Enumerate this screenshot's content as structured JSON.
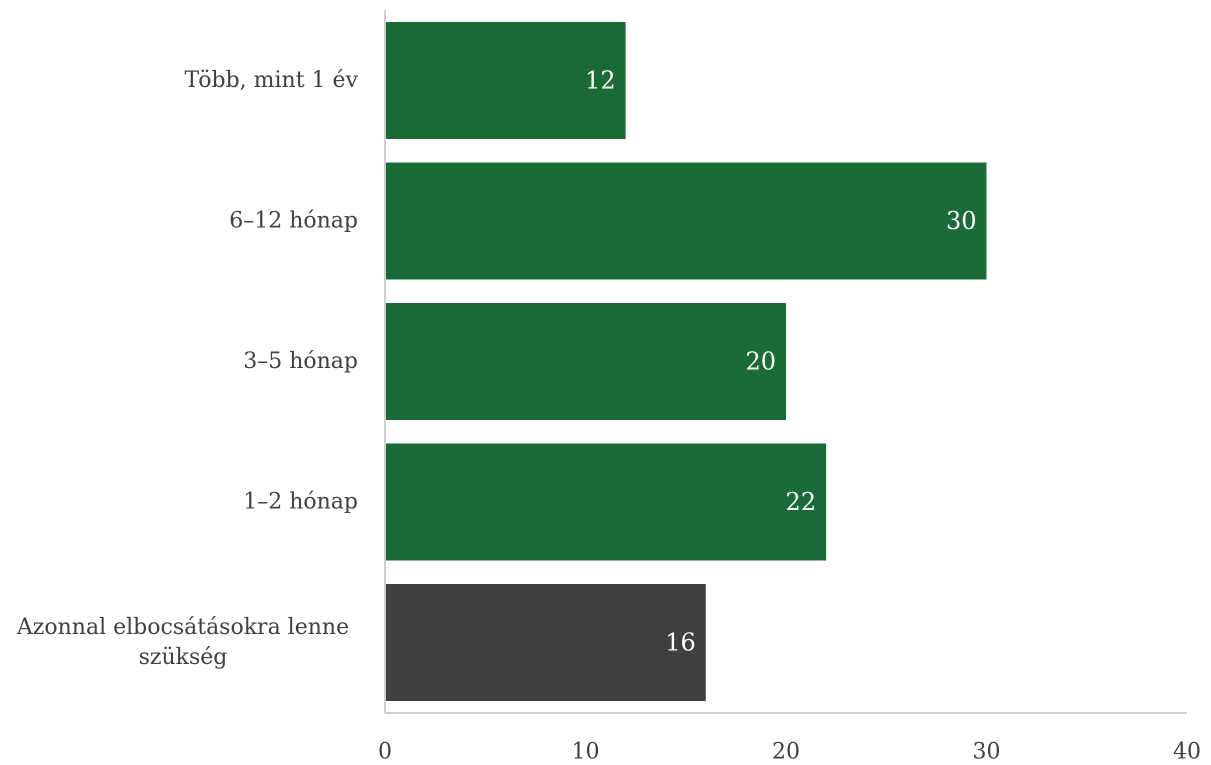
{
  "chart_data": {
    "type": "bar",
    "orientation": "horizontal",
    "categories": [
      [
        "Több, mint 1 év"
      ],
      [
        "6–12 hónap"
      ],
      [
        "3–5 hónap"
      ],
      [
        "1–2 hónap"
      ],
      [
        "Azonnal elbocsátásokra lenne",
        "szükség"
      ]
    ],
    "values": [
      12,
      30,
      20,
      22,
      16
    ],
    "bar_colors": [
      "#1a6b37",
      "#1a6b37",
      "#1a6b37",
      "#1a6b37",
      "#404040"
    ],
    "xlim": [
      0,
      40
    ],
    "xticks": [
      "0",
      "10",
      "20",
      "30",
      "40"
    ],
    "grid": false,
    "title": "",
    "xlabel": "",
    "ylabel": ""
  }
}
